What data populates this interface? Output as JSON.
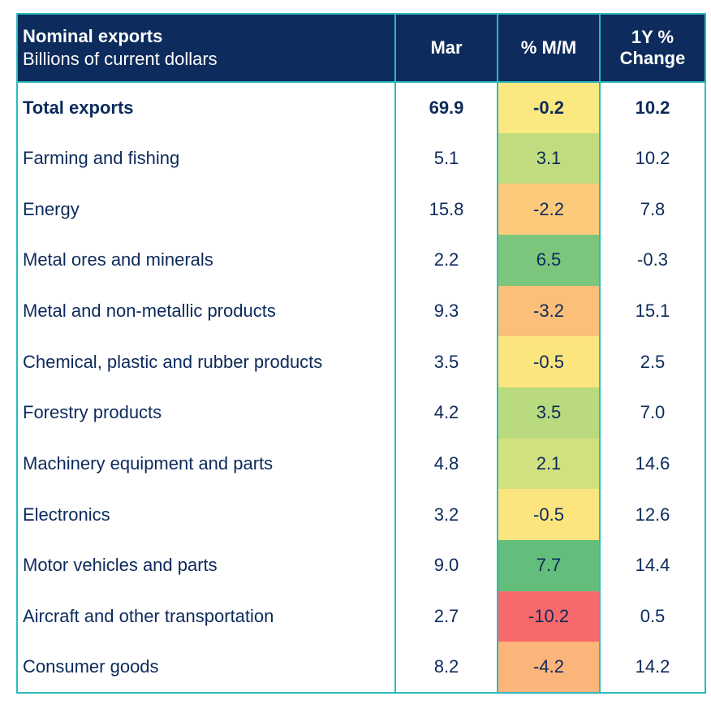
{
  "header": {
    "title": "Nominal exports",
    "subtitle": "Billions of current dollars",
    "col_mar": "Mar",
    "col_mm": "% M/M",
    "col_yoy_line1": "1Y %",
    "col_yoy_line2": "Change"
  },
  "rows": [
    {
      "label": "Total exports",
      "mar": "69.9",
      "mm": "-0.2",
      "yoy": "10.2",
      "mm_color": "#fbe880"
    },
    {
      "label": "Farming and fishing",
      "mar": "5.1",
      "mm": "3.1",
      "yoy": "10.2",
      "mm_color": "#c1dc7e"
    },
    {
      "label": "Energy",
      "mar": "15.8",
      "mm": "-2.2",
      "yoy": "7.8",
      "mm_color": "#fcca7a"
    },
    {
      "label": "Metal ores and minerals",
      "mar": "2.2",
      "mm": "6.5",
      "yoy": "-0.3",
      "mm_color": "#7cc57c"
    },
    {
      "label": "Metal and non-metallic products",
      "mar": "9.3",
      "mm": "-3.2",
      "yoy": "15.1",
      "mm_color": "#fbbf7a"
    },
    {
      "label": "Chemical, plastic and rubber products",
      "mar": "3.5",
      "mm": "-0.5",
      "yoy": "2.5",
      "mm_color": "#fce57f"
    },
    {
      "label": "Forestry products",
      "mar": "4.2",
      "mm": "3.5",
      "yoy": "7.0",
      "mm_color": "#b9da7e"
    },
    {
      "label": "Machinery equipment and parts",
      "mar": "4.8",
      "mm": "2.1",
      "yoy": "14.6",
      "mm_color": "#d2e17f"
    },
    {
      "label": "Electronics",
      "mar": "3.2",
      "mm": "-0.5",
      "yoy": "12.6",
      "mm_color": "#fce57f"
    },
    {
      "label": "Motor vehicles and parts",
      "mar": "9.0",
      "mm": "7.7",
      "yoy": "14.4",
      "mm_color": "#63be7b"
    },
    {
      "label": "Aircraft and other transportation",
      "mar": "2.7",
      "mm": "-10.2",
      "yoy": "0.5",
      "mm_color": "#f8696b"
    },
    {
      "label": "Consumer goods",
      "mar": "8.2",
      "mm": "-4.2",
      "yoy": "14.2",
      "mm_color": "#fbb479"
    }
  ],
  "chart_data": {
    "type": "table",
    "columns": [
      "Nominal exports",
      "Mar",
      "% M/M",
      "1Y % Change"
    ],
    "categories": [
      "Total exports",
      "Farming and fishing",
      "Energy",
      "Metal ores and minerals",
      "Metal and non-metallic products",
      "Chemical, plastic and rubber products",
      "Forestry products",
      "Machinery equipment and parts",
      "Electronics",
      "Motor vehicles and parts",
      "Aircraft and other transportation",
      "Consumer goods"
    ],
    "series": [
      {
        "name": "Mar",
        "values": [
          69.9,
          5.1,
          15.8,
          2.2,
          9.3,
          3.5,
          4.2,
          4.8,
          3.2,
          9.0,
          2.7,
          8.2
        ]
      },
      {
        "name": "% M/M",
        "values": [
          -0.2,
          3.1,
          -2.2,
          6.5,
          -3.2,
          -0.5,
          3.5,
          2.1,
          -0.5,
          7.7,
          -10.2,
          -4.2
        ]
      },
      {
        "name": "1Y % Change",
        "values": [
          10.2,
          10.2,
          7.8,
          -0.3,
          15.1,
          2.5,
          7.0,
          14.6,
          12.6,
          14.4,
          0.5,
          14.2
        ]
      }
    ],
    "title": "Nominal exports",
    "subtitle": "Billions of current dollars",
    "colors": {
      "header_bg": "#0d2b5c",
      "border": "#2cbcbc",
      "text": "#0c2a5b",
      "heat_high": "#63be7b",
      "heat_mid": "#fbe880",
      "heat_low": "#f8696b"
    }
  }
}
